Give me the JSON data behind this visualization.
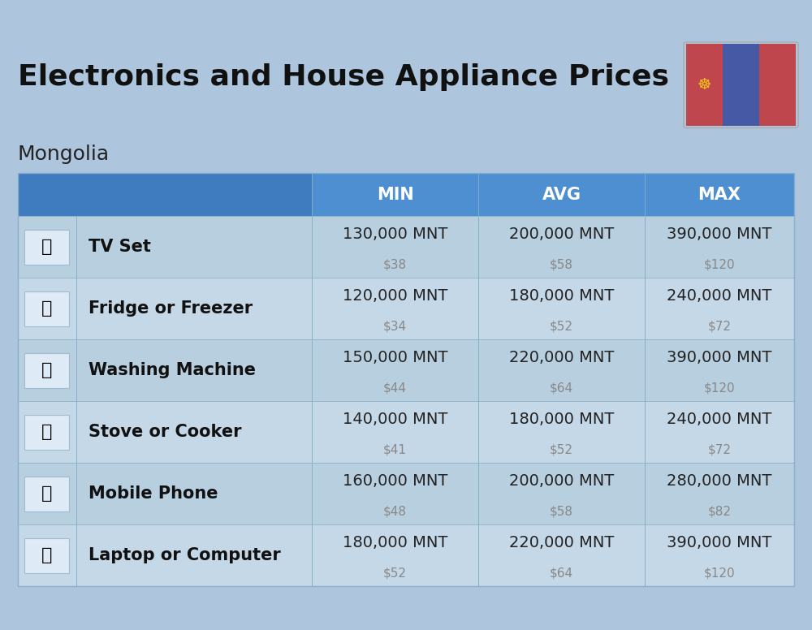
{
  "title": "Electronics and House Appliance Prices",
  "subtitle": "Mongolia",
  "bg_color": "#adc6de",
  "header_bg_dark": "#3e7cbf",
  "header_bg_light": "#4d8fd1",
  "row_bg_odd": "#b8cfdf",
  "row_bg_even": "#c5d8e8",
  "divider_color": "#8aafc8",
  "header_text_color": "#ffffff",
  "title_color": "#111111",
  "subtitle_color": "#222222",
  "item_name_color": "#111111",
  "mnt_color": "#222222",
  "usd_color": "#888888",
  "col_headers": [
    "MIN",
    "AVG",
    "MAX"
  ],
  "items": [
    {
      "name": "TV Set",
      "min_mnt": "130,000 MNT",
      "min_usd": "$38",
      "avg_mnt": "200,000 MNT",
      "avg_usd": "$58",
      "max_mnt": "390,000 MNT",
      "max_usd": "$120"
    },
    {
      "name": "Fridge or Freezer",
      "min_mnt": "120,000 MNT",
      "min_usd": "$34",
      "avg_mnt": "180,000 MNT",
      "avg_usd": "$52",
      "max_mnt": "240,000 MNT",
      "max_usd": "$72"
    },
    {
      "name": "Washing Machine",
      "min_mnt": "150,000 MNT",
      "min_usd": "$44",
      "avg_mnt": "220,000 MNT",
      "avg_usd": "$64",
      "max_mnt": "390,000 MNT",
      "max_usd": "$120"
    },
    {
      "name": "Stove or Cooker",
      "min_mnt": "140,000 MNT",
      "min_usd": "$41",
      "avg_mnt": "180,000 MNT",
      "avg_usd": "$52",
      "max_mnt": "240,000 MNT",
      "max_usd": "$72"
    },
    {
      "name": "Mobile Phone",
      "min_mnt": "160,000 MNT",
      "min_usd": "$48",
      "avg_mnt": "200,000 MNT",
      "avg_usd": "$58",
      "max_mnt": "280,000 MNT",
      "max_usd": "$82"
    },
    {
      "name": "Laptop or Computer",
      "min_mnt": "180,000 MNT",
      "min_usd": "$52",
      "avg_mnt": "220,000 MNT",
      "avg_usd": "$64",
      "max_mnt": "390,000 MNT",
      "max_usd": "$120"
    }
  ],
  "flag_colors": {
    "red": "#C0464E",
    "blue": "#4559A4",
    "soyombo": "#F5C518"
  },
  "title_fontsize": 26,
  "subtitle_fontsize": 18,
  "header_fontsize": 15,
  "item_name_fontsize": 15,
  "mnt_fontsize": 14,
  "usd_fontsize": 11
}
